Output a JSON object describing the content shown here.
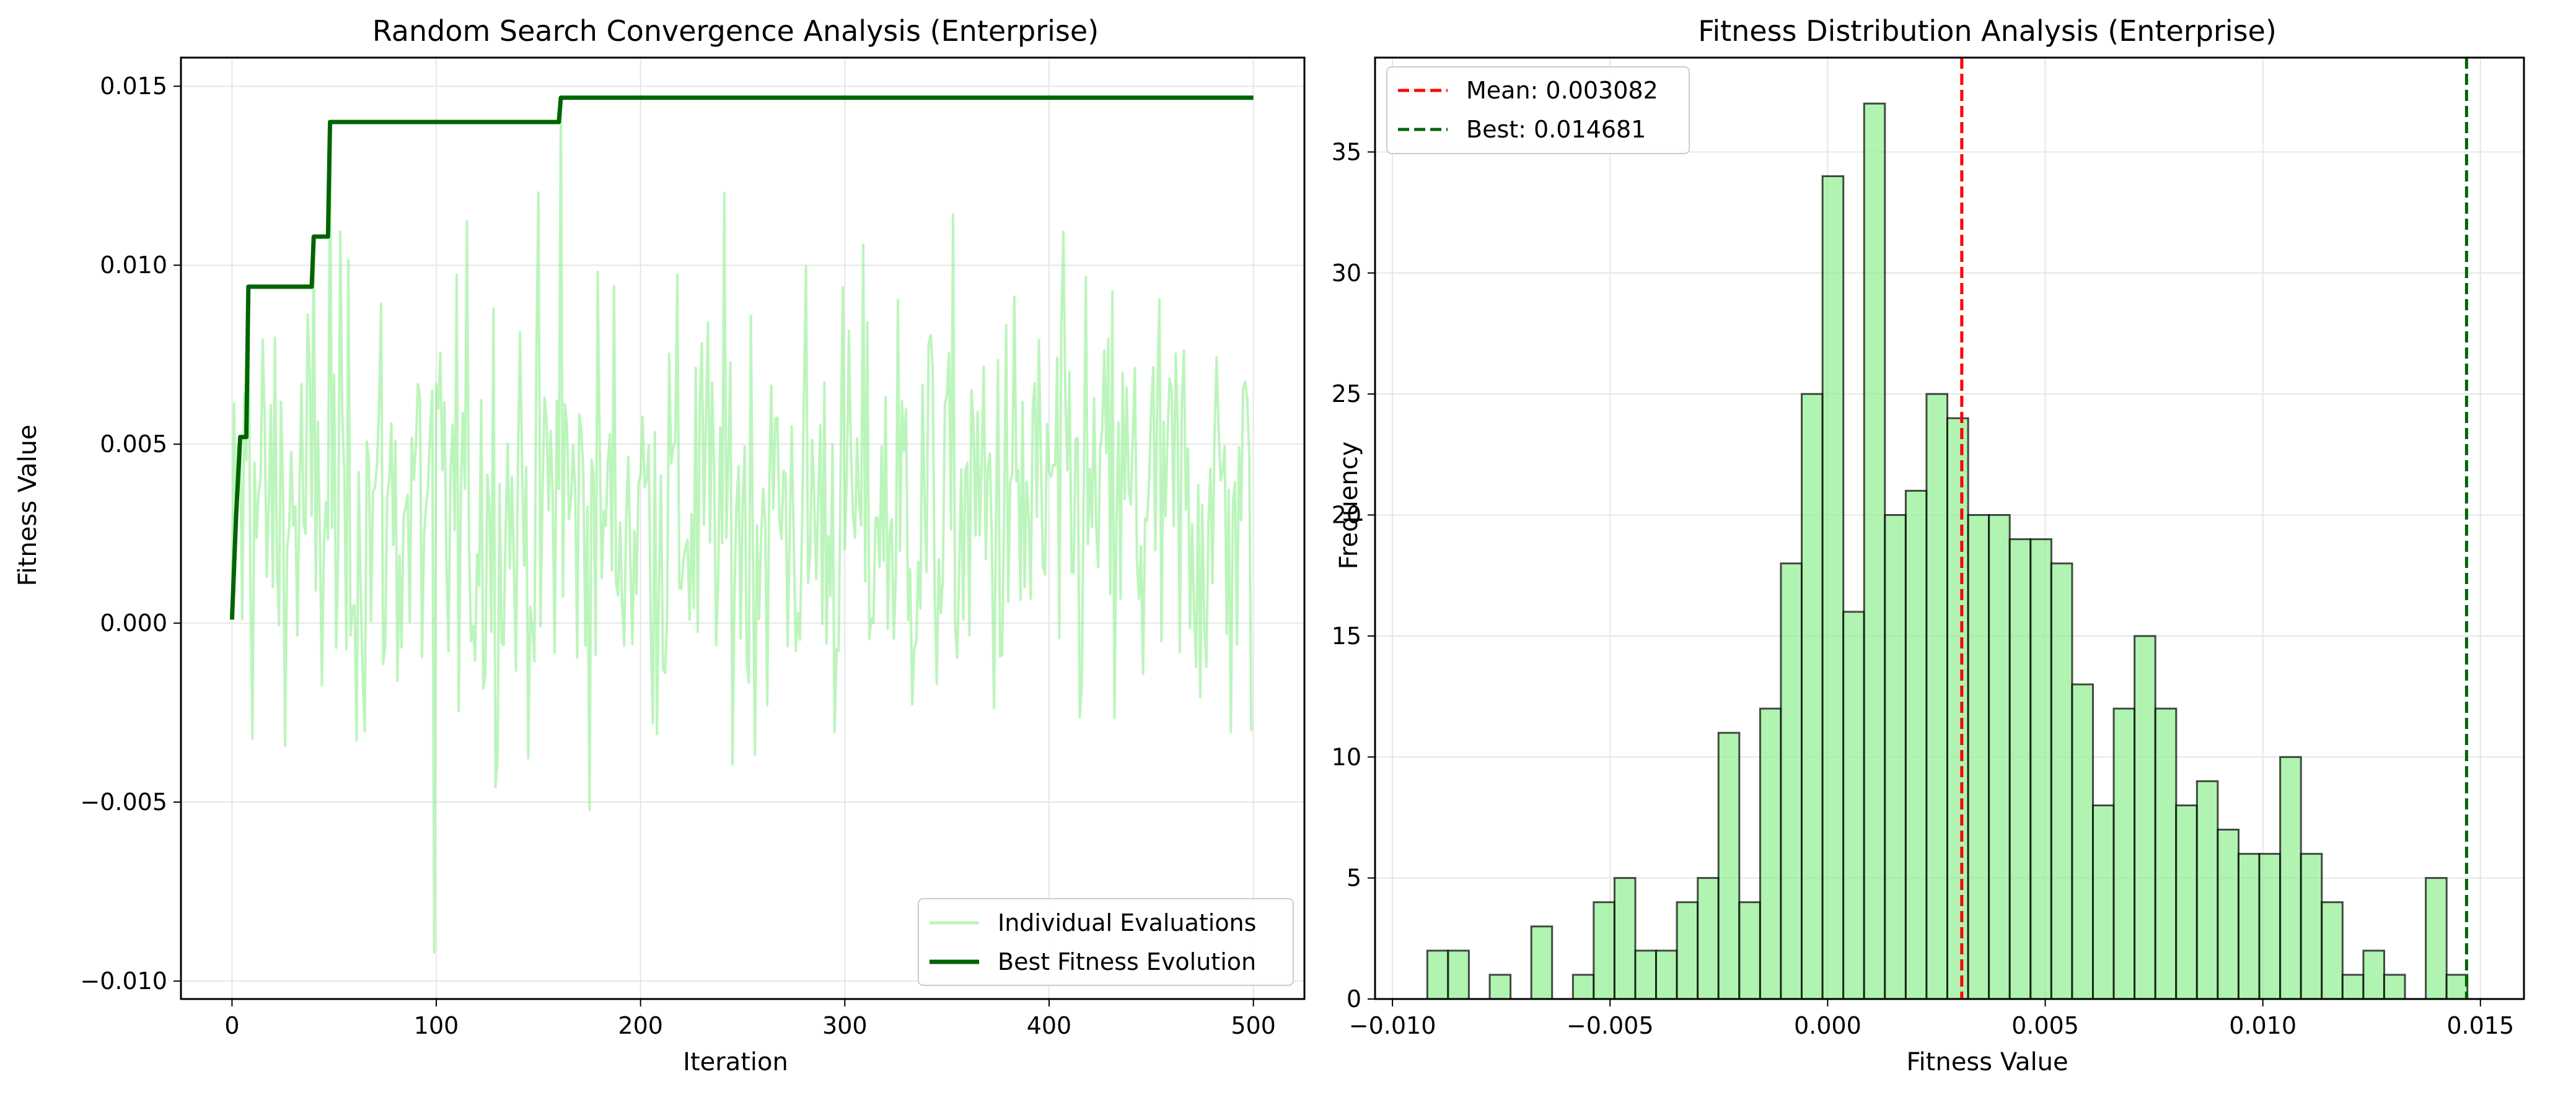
{
  "chart_data": [
    {
      "type": "line",
      "title": "Random Search Convergence Analysis (Enterprise)",
      "xlabel": "Iteration",
      "ylabel": "Fitness Value",
      "xlim": [
        -25,
        525
      ],
      "ylim": [
        -0.0105,
        0.0158
      ],
      "xticks": [
        0,
        100,
        200,
        300,
        400,
        500
      ],
      "xtick_labels": [
        "0",
        "100",
        "200",
        "300",
        "400",
        "500"
      ],
      "yticks": [
        -0.01,
        -0.005,
        0,
        0.005,
        0.01,
        0.015
      ],
      "ytick_labels": [
        "−0.010",
        "−0.005",
        "0.000",
        "0.005",
        "0.010",
        "0.015"
      ],
      "grid": true,
      "legend_position": "lower-right",
      "legend": [
        "Individual Evaluations",
        "Best Fitness Evolution"
      ],
      "series": [
        {
          "name": "Individual Evaluations",
          "color": "#90ee90",
          "generator": "noisy evaluations around 0.0031 for iterations 0-499",
          "n": 500,
          "mean": 0.003082,
          "std": 0.0045,
          "max": 0.014681,
          "min": -0.0092
        },
        {
          "name": "Best Fitness Evolution",
          "color": "#006400",
          "points": [
            [
              0,
              0.0001
            ],
            [
              2,
              0.003
            ],
            [
              4,
              0.0052
            ],
            [
              7,
              0.0052
            ],
            [
              8,
              0.0094
            ],
            [
              39,
              0.0094
            ],
            [
              40,
              0.0108
            ],
            [
              47,
              0.0108
            ],
            [
              48,
              0.014
            ],
            [
              160,
              0.014
            ],
            [
              161,
              0.014681
            ],
            [
              500,
              0.014681
            ]
          ]
        }
      ]
    },
    {
      "type": "bar",
      "subtype": "histogram",
      "title": "Fitness Distribution Analysis (Enterprise)",
      "xlabel": "Fitness Value",
      "ylabel": "Frequency",
      "xlim": [
        -0.0104,
        0.016
      ],
      "ylim": [
        0,
        38.9
      ],
      "xticks": [
        -0.01,
        -0.005,
        0,
        0.005,
        0.01,
        0.015
      ],
      "xtick_labels": [
        "−0.010",
        "−0.005",
        "0.000",
        "0.005",
        "0.010",
        "0.015"
      ],
      "yticks": [
        0,
        5,
        10,
        15,
        20,
        25,
        30,
        35
      ],
      "ytick_labels": [
        "0",
        "5",
        "10",
        "15",
        "20",
        "25",
        "30",
        "35"
      ],
      "grid": true,
      "legend_position": "top-left",
      "bar_color": "#90ee90",
      "bin_start": -0.0092,
      "bin_width": 0.000478,
      "counts": [
        2,
        2,
        0,
        1,
        0,
        3,
        0,
        1,
        4,
        5,
        2,
        2,
        4,
        5,
        11,
        4,
        12,
        18,
        25,
        34,
        16,
        37,
        20,
        21,
        25,
        24,
        20,
        20,
        19,
        19,
        18,
        13,
        8,
        12,
        15,
        12,
        8,
        9,
        7,
        6,
        6,
        10,
        6,
        4,
        1,
        2,
        1,
        0,
        5,
        1
      ],
      "vlines": [
        {
          "label": "Mean: 0.003082",
          "value": 0.003082,
          "color": "#ff0000"
        },
        {
          "label": "Best: 0.014681",
          "value": 0.014681,
          "color": "#006400"
        }
      ]
    }
  ]
}
